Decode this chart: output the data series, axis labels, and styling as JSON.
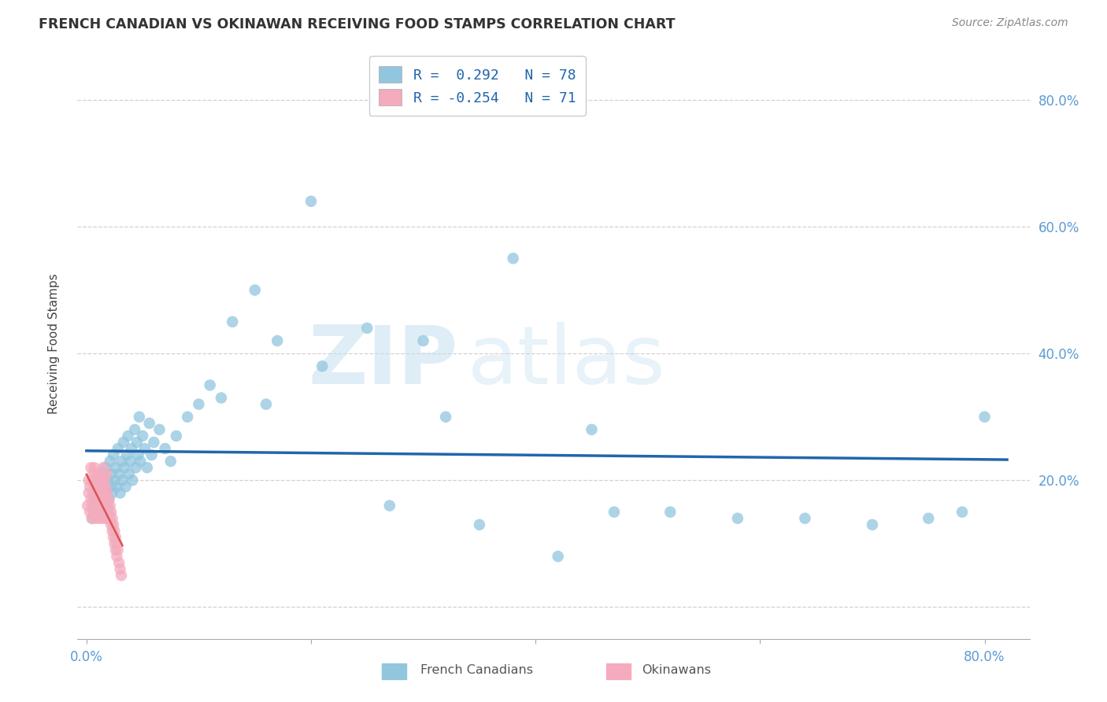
{
  "title": "FRENCH CANADIAN VS OKINAWAN RECEIVING FOOD STAMPS CORRELATION CHART",
  "source": "Source: ZipAtlas.com",
  "ylabel": "Receiving Food Stamps",
  "xlim": [
    -0.008,
    0.84
  ],
  "ylim": [
    -0.05,
    0.88
  ],
  "blue_R": 0.292,
  "blue_N": 78,
  "pink_R": -0.254,
  "pink_N": 71,
  "blue_color": "#92C5DE",
  "pink_color": "#F4ABBE",
  "blue_line_color": "#2166AC",
  "pink_line_color": "#D9534F",
  "legend_label_blue": "French Canadians",
  "legend_label_pink": "Okinawans",
  "tick_color": "#5B9BD5",
  "grid_color": "#CCCCCC",
  "blue_scatter_x": [
    0.005,
    0.007,
    0.009,
    0.01,
    0.01,
    0.012,
    0.013,
    0.014,
    0.015,
    0.016,
    0.017,
    0.018,
    0.019,
    0.02,
    0.021,
    0.022,
    0.022,
    0.023,
    0.024,
    0.025,
    0.026,
    0.027,
    0.028,
    0.029,
    0.03,
    0.031,
    0.032,
    0.033,
    0.034,
    0.035,
    0.036,
    0.037,
    0.038,
    0.039,
    0.04,
    0.041,
    0.043,
    0.044,
    0.045,
    0.046,
    0.047,
    0.048,
    0.05,
    0.052,
    0.054,
    0.056,
    0.058,
    0.06,
    0.065,
    0.07,
    0.075,
    0.08,
    0.09,
    0.1,
    0.11,
    0.12,
    0.13,
    0.15,
    0.17,
    0.2,
    0.25,
    0.3,
    0.35,
    0.38,
    0.42,
    0.47,
    0.52,
    0.58,
    0.64,
    0.7,
    0.75,
    0.78,
    0.8,
    0.45,
    0.32,
    0.27,
    0.21,
    0.16
  ],
  "blue_scatter_y": [
    0.14,
    0.17,
    0.15,
    0.18,
    0.2,
    0.16,
    0.19,
    0.21,
    0.15,
    0.18,
    0.22,
    0.16,
    0.2,
    0.17,
    0.23,
    0.19,
    0.21,
    0.18,
    0.24,
    0.2,
    0.22,
    0.19,
    0.25,
    0.21,
    0.18,
    0.23,
    0.2,
    0.26,
    0.22,
    0.19,
    0.24,
    0.27,
    0.21,
    0.23,
    0.25,
    0.2,
    0.28,
    0.22,
    0.26,
    0.24,
    0.3,
    0.23,
    0.27,
    0.25,
    0.22,
    0.29,
    0.24,
    0.26,
    0.28,
    0.25,
    0.23,
    0.27,
    0.3,
    0.32,
    0.35,
    0.33,
    0.45,
    0.5,
    0.42,
    0.64,
    0.44,
    0.42,
    0.13,
    0.55,
    0.08,
    0.15,
    0.15,
    0.14,
    0.14,
    0.13,
    0.14,
    0.15,
    0.3,
    0.28,
    0.3,
    0.16,
    0.38,
    0.32
  ],
  "pink_scatter_x": [
    0.001,
    0.002,
    0.002,
    0.003,
    0.003,
    0.004,
    0.004,
    0.005,
    0.005,
    0.005,
    0.006,
    0.006,
    0.006,
    0.007,
    0.007,
    0.007,
    0.008,
    0.008,
    0.008,
    0.009,
    0.009,
    0.009,
    0.01,
    0.01,
    0.01,
    0.011,
    0.011,
    0.011,
    0.012,
    0.012,
    0.012,
    0.013,
    0.013,
    0.013,
    0.014,
    0.014,
    0.014,
    0.015,
    0.015,
    0.015,
    0.016,
    0.016,
    0.016,
    0.017,
    0.017,
    0.017,
    0.018,
    0.018,
    0.018,
    0.019,
    0.019,
    0.02,
    0.02,
    0.021,
    0.021,
    0.022,
    0.022,
    0.023,
    0.023,
    0.024,
    0.024,
    0.025,
    0.025,
    0.026,
    0.026,
    0.027,
    0.027,
    0.028,
    0.029,
    0.03,
    0.031
  ],
  "pink_scatter_y": [
    0.16,
    0.18,
    0.2,
    0.15,
    0.19,
    0.17,
    0.22,
    0.16,
    0.2,
    0.14,
    0.18,
    0.21,
    0.15,
    0.19,
    0.16,
    0.22,
    0.14,
    0.18,
    0.2,
    0.15,
    0.19,
    0.17,
    0.21,
    0.15,
    0.18,
    0.16,
    0.2,
    0.14,
    0.19,
    0.17,
    0.21,
    0.15,
    0.18,
    0.16,
    0.2,
    0.14,
    0.19,
    0.17,
    0.22,
    0.15,
    0.18,
    0.16,
    0.2,
    0.14,
    0.19,
    0.17,
    0.21,
    0.15,
    0.18,
    0.16,
    0.14,
    0.17,
    0.15,
    0.16,
    0.14,
    0.15,
    0.13,
    0.14,
    0.12,
    0.13,
    0.11,
    0.12,
    0.1,
    0.11,
    0.09,
    0.1,
    0.08,
    0.09,
    0.07,
    0.06,
    0.05
  ]
}
